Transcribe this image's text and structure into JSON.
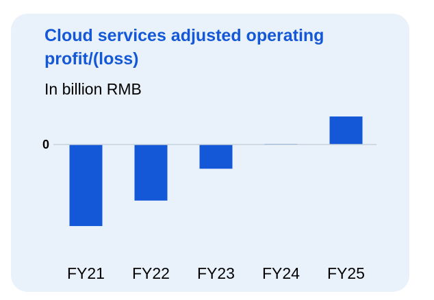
{
  "chart_data": {
    "type": "bar",
    "title": "Cloud services adjusted operating profit/(loss)",
    "subtitle": "In billion RMB",
    "categories": [
      "FY21",
      "FY22",
      "FY23",
      "FY24",
      "FY25"
    ],
    "values": [
      -6.4,
      -4.4,
      -1.9,
      0.05,
      2.2
    ],
    "y_tick_labels": [
      {
        "value": 0,
        "label": "0"
      }
    ],
    "ylim": [
      -7.5,
      2.8
    ],
    "grid": false,
    "legend": "none",
    "bar_color": "#1458d8",
    "axis_line_color": "#c8d2de"
  }
}
